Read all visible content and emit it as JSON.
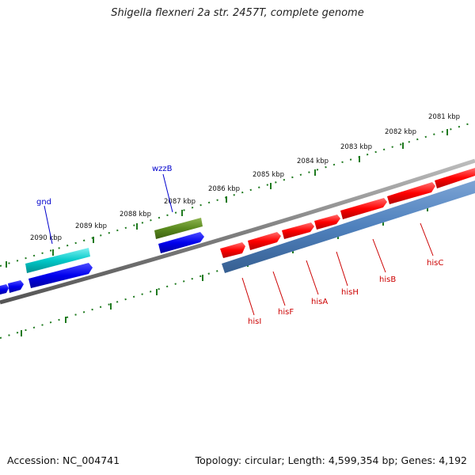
{
  "title": "Shigella flexneri 2a str. 2457T, complete genome",
  "footer": {
    "accession": "Accession: NC_004741",
    "summary": "Topology: circular; Length: 4,599,354 bp; Genes: 4,192"
  },
  "colors": {
    "backbone": "#808080",
    "ticks": "#1f7a1f",
    "forward_gene": "#ff0000",
    "reverse_gene_label": "#cc0000",
    "cds_blue": "#0000ee",
    "cds_steel": "#4f81bd",
    "gnd_gene": "#00c8c8",
    "wzzB_gene": "#5a8a1e",
    "gene_label_blue": "#0000cc"
  },
  "scale_labels": [
    "2081 kbp",
    "2082 kbp",
    "2083 kbp",
    "2084 kbp",
    "2085 kbp",
    "2086 kbp",
    "2087 kbp",
    "2088 kbp",
    "2089 kbp",
    "2090 kbp"
  ],
  "upper_genes": [
    {
      "name": "gnd"
    },
    {
      "name": "wzzB"
    }
  ],
  "lower_genes": [
    {
      "name": "hisI"
    },
    {
      "name": "hisF"
    },
    {
      "name": "hisA"
    },
    {
      "name": "hisH"
    },
    {
      "name": "hisB"
    },
    {
      "name": "hisC"
    }
  ]
}
